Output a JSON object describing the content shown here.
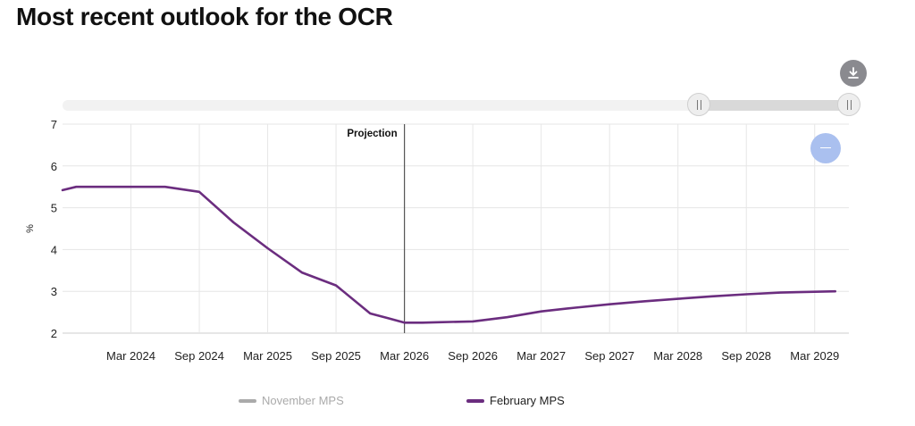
{
  "title": "Most recent outlook for the OCR",
  "icons": {
    "download": "download-icon",
    "zoom_reset": "minus-icon",
    "handle": "grip-icon"
  },
  "colors": {
    "series": "#6b2d7f",
    "inactive": "#aaaaaa",
    "projection_line": "#555555",
    "accent": "#aac0ef"
  },
  "chart_data": {
    "type": "line",
    "title": "Most recent outlook for the OCR",
    "xlabel": "",
    "ylabel": "%",
    "ylim": [
      2,
      7
    ],
    "yticks": [
      "2",
      "3",
      "4",
      "5",
      "6",
      "7"
    ],
    "xlim": [
      2023.75,
      2029.5
    ],
    "xticks": [
      {
        "label": "Mar 2024",
        "x": 2024.25
      },
      {
        "label": "Sep 2024",
        "x": 2024.75
      },
      {
        "label": "Mar 2025",
        "x": 2025.25
      },
      {
        "label": "Sep 2025",
        "x": 2025.75
      },
      {
        "label": "Mar 2026",
        "x": 2026.25
      },
      {
        "label": "Sep 2026",
        "x": 2026.75
      },
      {
        "label": "Mar 2027",
        "x": 2027.25
      },
      {
        "label": "Sep 2027",
        "x": 2027.75
      },
      {
        "label": "Mar 2028",
        "x": 2028.25
      },
      {
        "label": "Sep 2028",
        "x": 2028.75
      },
      {
        "label": "Mar 2029",
        "x": 2029.25
      }
    ],
    "annotation": {
      "label": "Projection",
      "x": 2026.25
    },
    "series": [
      {
        "name": "November MPS",
        "visible": false,
        "x": [],
        "values": []
      },
      {
        "name": "February MPS",
        "visible": true,
        "x": [
          2023.75,
          2023.85,
          2024.0,
          2024.25,
          2024.5,
          2024.75,
          2025.0,
          2025.25,
          2025.5,
          2025.75,
          2026.0,
          2026.13,
          2026.25,
          2026.38,
          2026.5,
          2026.75,
          2027.0,
          2027.25,
          2027.5,
          2027.75,
          2028.0,
          2028.25,
          2028.5,
          2028.75,
          2029.0,
          2029.25,
          2029.4
        ],
        "values": [
          5.42,
          5.5,
          5.5,
          5.5,
          5.5,
          5.38,
          4.65,
          4.03,
          3.45,
          3.14,
          2.47,
          2.36,
          2.25,
          2.25,
          2.26,
          2.28,
          2.38,
          2.52,
          2.61,
          2.69,
          2.76,
          2.82,
          2.88,
          2.93,
          2.97,
          2.99,
          3.0
        ]
      }
    ],
    "legend": "bottom-center"
  }
}
